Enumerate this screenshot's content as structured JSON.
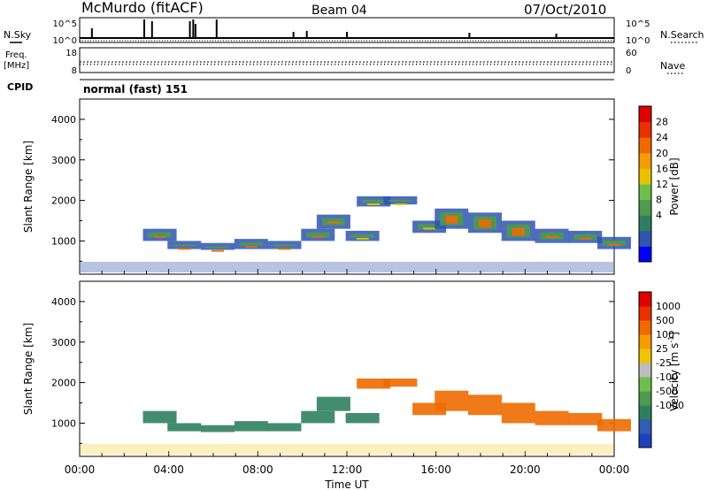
{
  "header": {
    "station": "McMurdo (fitACF)",
    "beam": "Beam 04",
    "date": "07/Oct/2010",
    "cpid_label": "CPID",
    "cpid_value": "normal (fast) 151"
  },
  "chart_data": [
    {
      "type": "line",
      "name": "noise-panel",
      "left_label": "N.Sky",
      "right_label": "N.Search",
      "left_ticks": [
        "10^5",
        "10^0"
      ],
      "right_ticks": [
        "10^5",
        "10^0"
      ],
      "left_scale": "log",
      "ylim": [
        1,
        100000
      ]
    },
    {
      "type": "line",
      "name": "frequency-panel",
      "left_label_line1": "Freq.",
      "left_label_line2": "[MHz]",
      "right_label": "Nave",
      "left_ticks": [
        "18",
        "8"
      ],
      "right_ticks": [
        "60",
        "0"
      ],
      "ylim": [
        8,
        18
      ],
      "y2lim": [
        0,
        60
      ],
      "freq_value": 12.3,
      "nave_value": 20
    },
    {
      "type": "heatmap",
      "name": "power-panel",
      "xlabel": "",
      "ylabel": "Slant Range [km]",
      "ylim": [
        180,
        4500
      ],
      "yticks": [
        "4000",
        "3000",
        "2000",
        "1000"
      ],
      "ytick_values": [
        4000,
        3000,
        2000,
        1000
      ],
      "colorbar_label": "Power [dB]",
      "colorbar_ticks": [
        "28",
        "24",
        "20",
        "16",
        "12",
        "8",
        "4"
      ],
      "colorbar_colors": [
        "#0000ff",
        "#2f55b0",
        "#2f7f5f",
        "#4e9a4e",
        "#6cc04a",
        "#e6c300",
        "#f29c00",
        "#ee6a00",
        "#e83000",
        "#e00000"
      ]
    },
    {
      "type": "heatmap",
      "name": "velocity-panel",
      "xlabel": "Time UT",
      "ylabel": "Slant Range [km]",
      "ylim": [
        180,
        4500
      ],
      "yticks": [
        "4000",
        "3000",
        "2000",
        "1000"
      ],
      "ytick_values": [
        4000,
        3000,
        2000,
        1000
      ],
      "xticks": [
        "00:00",
        "04:00",
        "08:00",
        "12:00",
        "16:00",
        "20:00",
        "00:00"
      ],
      "xtick_hours": [
        0,
        4,
        8,
        12,
        16,
        20,
        24
      ],
      "colorbar_label": "Velocity [m s",
      "colorbar_label_sup": "-1",
      "colorbar_label_end": "]",
      "colorbar_ticks": [
        "1000",
        "500",
        "100",
        "25",
        "-25",
        "-100",
        "-500",
        "-1000"
      ],
      "colorbar_colors": [
        "#1f3fbf",
        "#2f5db3",
        "#2f7f5f",
        "#4e9a4e",
        "#6cc04a",
        "#bdbdbd",
        "#f2c300",
        "#f59b00",
        "#ee6a00",
        "#e83000",
        "#e00000"
      ]
    }
  ]
}
